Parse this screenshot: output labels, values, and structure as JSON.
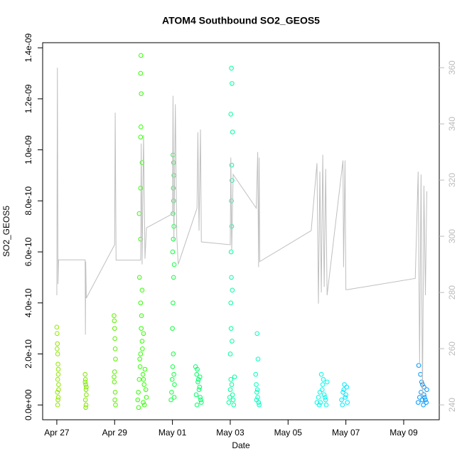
{
  "chart_data": {
    "type": "scatter",
    "title": "ATOM4 Southbound SO2_GEOS5",
    "x_label": "Date",
    "y_label": "SO2_GEOS5",
    "xlim": [
      -0.49,
      13.23
    ],
    "xticks": [
      {
        "value": 0,
        "label": "Apr 27"
      },
      {
        "value": 2,
        "label": "Apr 29"
      },
      {
        "value": 4,
        "label": "May 01"
      },
      {
        "value": 6,
        "label": "May 03"
      },
      {
        "value": 8,
        "label": "May 05"
      },
      {
        "value": 10,
        "label": "May 07"
      },
      {
        "value": 12,
        "label": "May 09"
      }
    ],
    "ylim": [
      -5.8e-11,
      1.42e-09
    ],
    "yticks": [
      {
        "value": 0,
        "label": "0.0e+00"
      },
      {
        "value": 2e-10,
        "label": "2.0e-10"
      },
      {
        "value": 4e-10,
        "label": "4.0e-10"
      },
      {
        "value": 6e-10,
        "label": "6.0e-10"
      },
      {
        "value": 8e-10,
        "label": "8.0e-10"
      },
      {
        "value": 1e-09,
        "label": "1.0e-09"
      },
      {
        "value": 1.2e-09,
        "label": "1.2e-09"
      },
      {
        "value": 1.4e-09,
        "label": "1.4e-09"
      }
    ],
    "y2lim": [
      234.7,
      368.9
    ],
    "y2ticks": [
      240,
      260,
      280,
      300,
      320,
      340,
      360
    ],
    "series": [
      {
        "color": "#90e800",
        "x": [
          0,
          0.01,
          0.02,
          0.03,
          0.04,
          0.05,
          0.06,
          0.02,
          0.04,
          0.03,
          0.05,
          0.01,
          0.06,
          0.03,
          0.05
        ],
        "values": [
          3.05e-10,
          2.8e-10,
          2.4e-10,
          2e-10,
          1.6e-10,
          1.2e-10,
          8e-11,
          5e-11,
          2e-11,
          0,
          1.4e-10,
          2.2e-10,
          6e-11,
          1e-10,
          3e-11
        ]
      },
      {
        "color": "#80e800",
        "x": [
          0.98,
          0.99,
          1.0,
          1.01,
          1.02,
          0.99,
          1.01,
          1.0,
          0.98,
          1.02
        ],
        "values": [
          1.2e-10,
          1e-10,
          8e-11,
          6e-11,
          4e-11,
          2e-11,
          0,
          -1e-11,
          9e-11,
          7e-11
        ]
      },
      {
        "color": "#5cf000",
        "x": [
          1.98,
          1.99,
          2.0,
          2.01,
          2.02,
          2.03,
          2.0,
          1.99,
          2.02,
          2.01,
          2.03,
          1.98
        ],
        "values": [
          3.5e-10,
          3.3e-10,
          3e-10,
          2.6e-10,
          2.2e-10,
          1.8e-10,
          1.3e-10,
          9e-11,
          5e-11,
          2e-11,
          0,
          1.1e-10
        ]
      },
      {
        "color": "#30ff00",
        "x": [
          2.8,
          2.82,
          2.85,
          2.88,
          2.9,
          2.92,
          2.95,
          2.98,
          3.0,
          3.02,
          3.05,
          3.08,
          3.1,
          2.83,
          2.87,
          2.9,
          2.93,
          2.96,
          2.99,
          3.03,
          2.86,
          2.9,
          2.95,
          3.0,
          2.85,
          2.9,
          2.95,
          2.9,
          2.91,
          2.92,
          2.9,
          2.91
        ],
        "values": [
          2e-11,
          5e-11,
          1e-10,
          1.5e-10,
          2e-10,
          3e-10,
          2.5e-10,
          1.2e-10,
          1e-10,
          8e-11,
          1.4e-10,
          6e-11,
          3e-11,
          -1e-11,
          1.8e-10,
          4e-10,
          3.5e-10,
          2.2e-10,
          1e-11,
          0,
          5e-10,
          6.5e-10,
          4.5e-10,
          2.8e-10,
          7.5e-10,
          8.5e-10,
          9.5e-10,
          1.05e-09,
          1.09e-09,
          1.22e-09,
          1.3e-09,
          1.37e-09
        ]
      },
      {
        "color": "#10ff40",
        "x": [
          3.95,
          3.97,
          3.99,
          4.01,
          4.03,
          4.05,
          4.07,
          4.0,
          4.02,
          4.04,
          4.06,
          4.01,
          4.03,
          4.05,
          4.02,
          4.04,
          4.03,
          4.05,
          4.04,
          4.02,
          4.06
        ],
        "values": [
          2e-11,
          5e-11,
          1e-10,
          1.5e-10,
          2e-10,
          1.2e-10,
          8e-11,
          3e-10,
          4e-10,
          5e-10,
          5.5e-10,
          6e-10,
          6.5e-10,
          7e-10,
          7.5e-10,
          8e-10,
          8.5e-10,
          9e-10,
          9.5e-10,
          9.8e-10,
          3e-11
        ]
      },
      {
        "color": "#00ff66",
        "x": [
          4.8,
          4.84,
          4.88,
          4.92,
          4.96,
          5.0,
          4.82,
          4.86,
          4.9,
          4.94,
          4.98,
          4.85,
          4.95
        ],
        "values": [
          1.5e-10,
          1.2e-10,
          9e-11,
          6e-11,
          3e-11,
          1e-11,
          4e-11,
          1.4e-10,
          1e-10,
          7e-11,
          2e-11,
          0,
          1.1e-10
        ]
      },
      {
        "color": "#00ffa0",
        "x": [
          5.95,
          5.98,
          6.0,
          6.02,
          6.05,
          6.08,
          6.1,
          6.12,
          6.15,
          6.0,
          6.03,
          6.06,
          6.02,
          6.04,
          6.07,
          6.03,
          6.05,
          6.04,
          6.06,
          6.05,
          6.08,
          6.02,
          6.06,
          6.04
        ],
        "values": [
          1e-11,
          3e-11,
          6e-11,
          1e-10,
          8e-11,
          4e-11,
          2e-11,
          0,
          1.1e-10,
          2e-10,
          3e-10,
          2.5e-10,
          4e-10,
          5e-10,
          4.5e-10,
          6e-10,
          7e-10,
          8e-10,
          8.8e-10,
          9.4e-10,
          1.07e-09,
          1.14e-09,
          1.26e-09,
          1.32e-09
        ]
      },
      {
        "color": "#00ffc0",
        "x": [
          6.88,
          6.9,
          6.92,
          6.95,
          6.98,
          7.0,
          6.93,
          6.96,
          6.91,
          6.94
        ],
        "values": [
          1.2e-10,
          8e-11,
          5e-11,
          3e-11,
          1e-11,
          0,
          2.8e-10,
          1.8e-10,
          2e-11,
          6e-11
        ]
      },
      {
        "color": "#00f8e8",
        "x": [
          9.0,
          9.05,
          9.1,
          9.15,
          9.2,
          9.25,
          9.3,
          9.35,
          9.08,
          9.18,
          9.28,
          9.12,
          9.22,
          9.32
        ],
        "values": [
          1e-11,
          3e-11,
          5e-11,
          1.2e-10,
          8e-11,
          4e-11,
          2e-11,
          9e-11,
          0,
          6e-11,
          3e-11,
          1e-11,
          1e-10,
          0
        ]
      },
      {
        "color": "#00e8ff",
        "x": [
          9.85,
          9.9,
          9.95,
          10.0,
          10.05,
          9.88,
          9.93,
          9.98,
          10.03
        ],
        "values": [
          2e-11,
          5e-11,
          8e-11,
          4e-11,
          1e-11,
          0,
          6e-11,
          3e-11,
          7e-11
        ]
      },
      {
        "color": "#0098ff",
        "x": [
          12.5,
          12.55,
          12.6,
          12.65,
          12.7,
          12.75,
          12.8,
          12.52,
          12.58,
          12.62,
          12.68,
          12.72,
          12.78,
          12.64,
          12.7
        ],
        "values": [
          1e-11,
          3e-11,
          5e-11,
          8e-11,
          4e-11,
          2e-11,
          6e-11,
          1.55e-10,
          1.2e-10,
          9e-11,
          0,
          3e-11,
          1e-11,
          2e-11,
          7e-11
        ]
      },
      {
        "color": "#bfbfbf",
        "axis": "y2",
        "mode": "line",
        "x": [
          0,
          0.02,
          0.04,
          0.06,
          0.98,
          0.99,
          1.0,
          1.02,
          2.0,
          2.02,
          2.05,
          2.9,
          2.92,
          2.95,
          3.0,
          3.05,
          3.1,
          4.0,
          4.02,
          4.05,
          4.1,
          4.15,
          4.2,
          4.85,
          4.88,
          4.92,
          4.97,
          5.0,
          6.0,
          6.02,
          6.05,
          6.1,
          6.9,
          6.95,
          6.98,
          7.0,
          7.02,
          8.8,
          9.0,
          9.05,
          9.1,
          9.15,
          9.2,
          9.25,
          9.3,
          9.35,
          9.9,
          9.92,
          9.97,
          10.0,
          10.05,
          12.4,
          12.5,
          12.55,
          12.6,
          12.65,
          12.7,
          12.75,
          12.8
        ],
        "values": [
          279,
          360,
          283,
          291.6,
          291.6,
          265,
          291,
          278,
          297,
          344,
          291.5,
          291.5,
          333,
          290,
          336,
          292,
          303,
          308,
          350,
          298,
          347,
          300,
          290,
          310,
          337,
          302,
          338,
          298,
          297,
          328,
          295,
          322,
          310,
          330,
          289,
          328,
          291,
          302,
          326,
          276,
          323,
          280,
          329,
          282,
          324,
          279,
          327,
          289,
          327,
          281,
          281,
          285,
          323,
          255,
          322,
          243,
          318,
          279,
          316
        ]
      }
    ]
  }
}
